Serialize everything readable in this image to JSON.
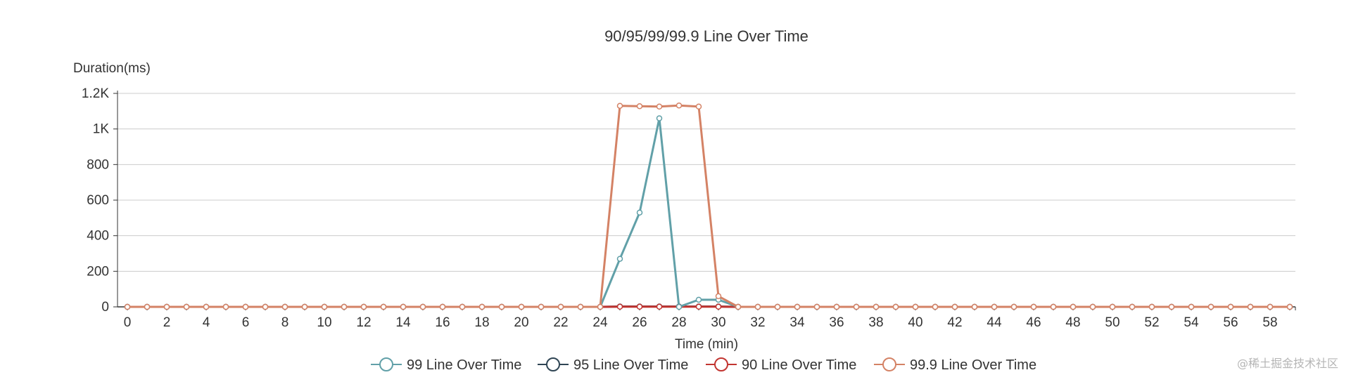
{
  "chart_data": {
    "type": "line",
    "title": "90/95/99/99.9 Line Over Time",
    "xlabel": "Time (min)",
    "ylabel": "Duration(ms)",
    "xlim": [
      0,
      59
    ],
    "ylim": [
      0,
      1200
    ],
    "x_ticks": [
      0,
      2,
      4,
      6,
      8,
      10,
      12,
      14,
      16,
      18,
      20,
      22,
      24,
      26,
      28,
      30,
      32,
      34,
      36,
      38,
      40,
      42,
      44,
      46,
      48,
      50,
      52,
      54,
      56,
      58
    ],
    "y_ticks": [
      {
        "value": 0,
        "label": "0"
      },
      {
        "value": 200,
        "label": "200"
      },
      {
        "value": 400,
        "label": "400"
      },
      {
        "value": 600,
        "label": "600"
      },
      {
        "value": 800,
        "label": "800"
      },
      {
        "value": 1000,
        "label": "1K"
      },
      {
        "value": 1200,
        "label": "1.2K"
      }
    ],
    "grid": true,
    "legend_position": "bottom",
    "x": [
      0,
      1,
      2,
      3,
      4,
      5,
      6,
      7,
      8,
      9,
      10,
      11,
      12,
      13,
      14,
      15,
      16,
      17,
      18,
      19,
      20,
      21,
      22,
      23,
      24,
      25,
      26,
      27,
      28,
      29,
      30,
      31,
      32,
      33,
      34,
      35,
      36,
      37,
      38,
      39,
      40,
      41,
      42,
      43,
      44,
      45,
      46,
      47,
      48,
      49,
      50,
      51,
      52,
      53,
      54,
      55,
      56,
      57,
      58,
      59
    ],
    "series": [
      {
        "name": "99 Line Over Time",
        "color": "#61a0a8",
        "values": [
          0,
          0,
          0,
          0,
          0,
          0,
          0,
          0,
          0,
          0,
          0,
          0,
          0,
          0,
          0,
          0,
          0,
          0,
          0,
          0,
          0,
          0,
          0,
          0,
          0,
          270,
          530,
          1060,
          0,
          40,
          40,
          0,
          0,
          0,
          0,
          0,
          0,
          0,
          0,
          0,
          0,
          0,
          0,
          0,
          0,
          0,
          0,
          0,
          0,
          0,
          0,
          0,
          0,
          0,
          0,
          0,
          0,
          0,
          0,
          0
        ]
      },
      {
        "name": "95 Line Over Time",
        "color": "#2f4554",
        "values": [
          0,
          0,
          0,
          0,
          0,
          0,
          0,
          0,
          0,
          0,
          0,
          0,
          0,
          0,
          0,
          0,
          0,
          0,
          0,
          0,
          0,
          0,
          0,
          0,
          0,
          2,
          2,
          2,
          2,
          2,
          2,
          0,
          0,
          0,
          0,
          0,
          0,
          0,
          0,
          0,
          0,
          0,
          0,
          0,
          0,
          0,
          0,
          0,
          0,
          0,
          0,
          0,
          0,
          0,
          0,
          0,
          0,
          0,
          0,
          0
        ]
      },
      {
        "name": "90 Line Over Time",
        "color": "#c23531",
        "values": [
          0,
          0,
          0,
          0,
          0,
          0,
          0,
          0,
          0,
          0,
          0,
          0,
          0,
          0,
          0,
          0,
          0,
          0,
          0,
          0,
          0,
          0,
          0,
          0,
          0,
          1,
          1,
          1,
          1,
          1,
          1,
          0,
          0,
          0,
          0,
          0,
          0,
          0,
          0,
          0,
          0,
          0,
          0,
          0,
          0,
          0,
          0,
          0,
          0,
          0,
          0,
          0,
          0,
          0,
          0,
          0,
          0,
          0,
          0,
          0
        ]
      },
      {
        "name": "99.9 Line Over Time",
        "color": "#d48265",
        "values": [
          0,
          0,
          0,
          0,
          0,
          0,
          0,
          0,
          0,
          0,
          0,
          0,
          0,
          0,
          0,
          0,
          0,
          0,
          0,
          0,
          0,
          0,
          0,
          0,
          0,
          1130,
          1128,
          1126,
          1132,
          1126,
          60,
          0,
          0,
          0,
          0,
          0,
          0,
          0,
          0,
          0,
          0,
          0,
          0,
          0,
          0,
          0,
          0,
          0,
          0,
          0,
          0,
          0,
          0,
          0,
          0,
          0,
          0,
          0,
          0,
          0
        ]
      }
    ]
  },
  "watermark": "@稀土掘金技术社区"
}
